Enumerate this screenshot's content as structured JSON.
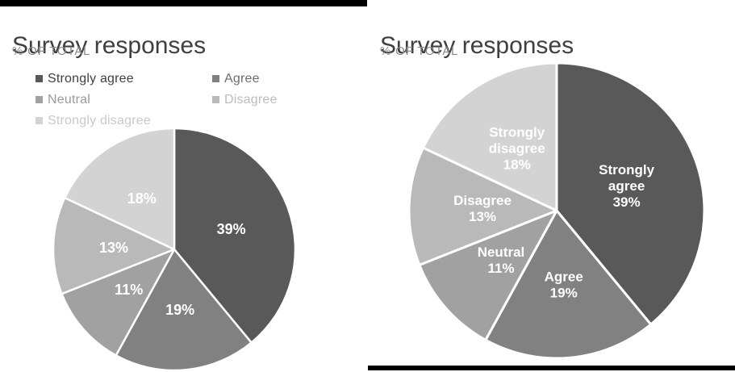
{
  "slides": {
    "left": {
      "accent_bar_position": "top",
      "accent_bar_color": "#000000",
      "title": "Survey responses",
      "subtitle": "% OF TOTAL",
      "legend": {
        "items": [
          {
            "label": "Strongly agree",
            "marker_color": "#595959",
            "text_color": "#404040"
          },
          {
            "label": "Agree",
            "marker_color": "#818181",
            "text_color": "#6e6e6e"
          },
          {
            "label": "Neutral",
            "marker_color": "#a1a1a1",
            "text_color": "#9b9b9b"
          },
          {
            "label": "Disagree",
            "marker_color": "#b9b9b9",
            "text_color": "#bcbcbc"
          },
          {
            "label": "Strongly disagree",
            "marker_color": "#d3d3d3",
            "text_color": "#c9c9c9"
          }
        ]
      }
    },
    "right": {
      "accent_bar_position": "bottom",
      "accent_bar_color": "#000000",
      "title": "Survey responses",
      "subtitle": "% OF TOTAL"
    }
  },
  "chart_data": [
    {
      "type": "pie",
      "title": "Survey responses",
      "subtitle": "% OF TOTAL",
      "categories": [
        "Strongly agree",
        "Agree",
        "Neutral",
        "Disagree",
        "Strongly disagree"
      ],
      "values": [
        39,
        19,
        11,
        13,
        18
      ],
      "value_unit": "%",
      "colors": [
        "#595959",
        "#818181",
        "#a1a1a1",
        "#b9b9b9",
        "#d3d3d3"
      ],
      "slice_labels": [
        [
          "39%"
        ],
        [
          "19%"
        ],
        [
          "11%"
        ],
        [
          "13%"
        ],
        [
          "18%"
        ]
      ],
      "slice_label_color": "#ffffff",
      "start_angle_deg": 0,
      "direction": "clockwise",
      "legend_position": "top-left-two-columns"
    },
    {
      "type": "pie",
      "title": "Survey responses",
      "subtitle": "% OF TOTAL",
      "categories": [
        "Strongly agree",
        "Agree",
        "Neutral",
        "Disagree",
        "Strongly disagree"
      ],
      "values": [
        39,
        19,
        11,
        13,
        18
      ],
      "value_unit": "%",
      "colors": [
        "#595959",
        "#818181",
        "#a1a1a1",
        "#b9b9b9",
        "#d3d3d3"
      ],
      "slice_labels": [
        [
          "Strongly",
          "agree",
          "39%"
        ],
        [
          "Agree",
          "19%"
        ],
        [
          "Neutral",
          "11%"
        ],
        [
          "Disagree",
          "13%"
        ],
        [
          "Strongly",
          "disagree",
          "18%"
        ]
      ],
      "slice_label_color": "#ffffff",
      "start_angle_deg": 0,
      "direction": "clockwise",
      "legend_position": "none"
    }
  ]
}
